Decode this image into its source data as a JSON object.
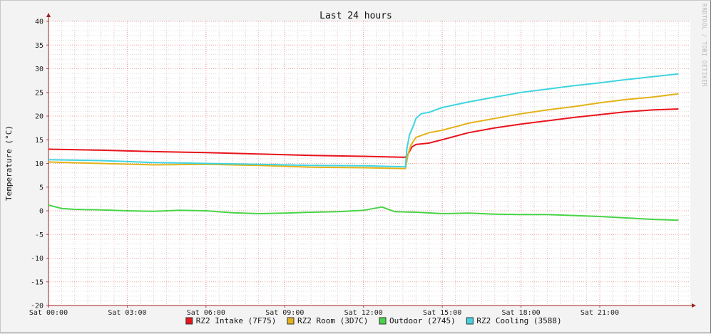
{
  "chart_data": {
    "type": "line",
    "title": "Last 24 hours",
    "ylabel": "Temperature (°C)",
    "watermark": "RRDTOOL / TOBI OETIKER",
    "ylim": [
      -20,
      40
    ],
    "yticks": [
      -20,
      -15,
      -10,
      -5,
      0,
      5,
      10,
      15,
      20,
      25,
      30,
      35,
      40
    ],
    "xlim": [
      0,
      24.45
    ],
    "xticks": [
      {
        "hour": 0,
        "label": "Sat 00:00"
      },
      {
        "hour": 3,
        "label": "Sat 03:00"
      },
      {
        "hour": 6,
        "label": "Sat 06:00"
      },
      {
        "hour": 9,
        "label": "Sat 09:00"
      },
      {
        "hour": 12,
        "label": "Sat 12:00"
      },
      {
        "hour": 15,
        "label": "Sat 15:00"
      },
      {
        "hour": 18,
        "label": "Sat 18:00"
      },
      {
        "hour": 21,
        "label": "Sat 21:00"
      }
    ],
    "grid": true,
    "legend_position": "bottom",
    "series": [
      {
        "name": "RZ2 Intake (7F75)",
        "color": "#e8141c",
        "x": [
          0,
          2,
          4,
          6,
          8,
          10,
          12,
          13.6,
          13.7,
          13.85,
          14.0,
          14.5,
          15,
          16,
          17,
          18,
          19,
          20,
          21,
          22,
          23,
          24
        ],
        "y": [
          13.0,
          12.8,
          12.5,
          12.3,
          12.0,
          11.7,
          11.5,
          11.3,
          12.0,
          13.5,
          14.0,
          14.3,
          15.0,
          16.5,
          17.5,
          18.3,
          19.0,
          19.7,
          20.3,
          20.9,
          21.3,
          21.5
        ]
      },
      {
        "name": "RZ2 Room (3D7C)",
        "color": "#e3b21a",
        "x": [
          0,
          2,
          4,
          6,
          8,
          10,
          12,
          13.6,
          13.7,
          13.8,
          14.0,
          14.5,
          15,
          16,
          17,
          18,
          19,
          20,
          21,
          22,
          23,
          24
        ],
        "y": [
          10.3,
          10.0,
          9.7,
          9.8,
          9.6,
          9.2,
          9.1,
          8.9,
          12.0,
          13.8,
          15.5,
          16.5,
          17.0,
          18.5,
          19.5,
          20.5,
          21.3,
          22.0,
          22.8,
          23.5,
          24.0,
          24.7
        ]
      },
      {
        "name": "Outdoor (2745)",
        "color": "#48d448",
        "x": [
          0,
          0.5,
          1,
          2,
          3,
          4,
          5,
          6,
          7,
          8,
          9,
          10,
          11,
          12,
          12.7,
          13.2,
          14,
          15,
          16,
          17,
          18,
          19,
          20,
          21,
          22,
          23,
          24
        ],
        "y": [
          1.2,
          0.5,
          0.3,
          0.2,
          0.0,
          -0.1,
          0.1,
          0.0,
          -0.4,
          -0.6,
          -0.5,
          -0.3,
          -0.2,
          0.1,
          0.8,
          -0.2,
          -0.3,
          -0.6,
          -0.5,
          -0.7,
          -0.8,
          -0.8,
          -1.0,
          -1.2,
          -1.5,
          -1.8,
          -2.0
        ]
      },
      {
        "name": "RZ2 Cooling (3588)",
        "color": "#3fd4e0",
        "x": [
          0,
          2,
          4,
          6,
          8,
          10,
          12,
          13.6,
          13.65,
          13.75,
          13.9,
          14.0,
          14.2,
          14.5,
          15,
          16,
          17,
          18,
          19,
          20,
          21,
          22,
          23,
          24
        ],
        "y": [
          10.8,
          10.6,
          10.2,
          10.0,
          9.8,
          9.6,
          9.5,
          9.3,
          13.0,
          16.0,
          18.0,
          19.5,
          20.5,
          20.8,
          21.8,
          23.0,
          24.0,
          25.0,
          25.7,
          26.4,
          27.0,
          27.7,
          28.3,
          28.9
        ]
      }
    ]
  }
}
